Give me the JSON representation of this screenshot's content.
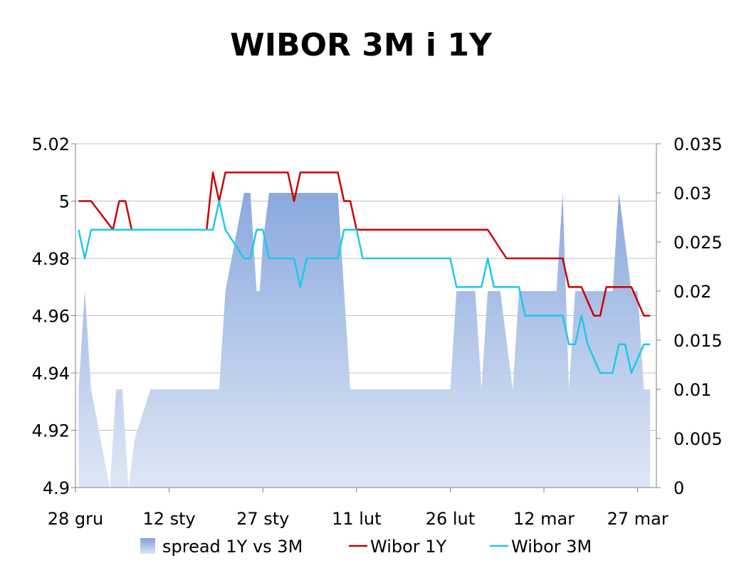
{
  "chart_data": {
    "type": "line",
    "title": "WIBOR 3M i 1Y",
    "x_tick_labels": [
      "28 gru",
      "12 sty",
      "27 sty",
      "11 lut",
      "26 lut",
      "12 mar",
      "27 mar"
    ],
    "x_range_days": [
      0,
      93
    ],
    "left_axis": {
      "min": 4.9,
      "max": 5.02,
      "ticks": [
        "4.9",
        "4.92",
        "4.94",
        "4.96",
        "4.98",
        "5",
        "5.02"
      ]
    },
    "right_axis": {
      "min": 0,
      "max": 0.035,
      "ticks": [
        "0",
        "0.005",
        "0.01",
        "0.015",
        "0.02",
        "0.025",
        "0.03",
        "0.035"
      ]
    },
    "grid": true,
    "legend_position": "bottom",
    "legend": [
      "spread 1Y vs 3M",
      "Wibor 1Y",
      "Wibor 3M"
    ],
    "colors": {
      "spread": "#8eaadc",
      "wibor1y": "#cc0000",
      "wibor3m": "#1ec8ea",
      "grid": "#c0c0c0"
    },
    "series": [
      {
        "name": "spread 1Y vs 3M",
        "type": "area",
        "axis": "right",
        "x": [
          0.5,
          1.5,
          2.5,
          5.5,
          6.5,
          7.5,
          8.5,
          9.5,
          12,
          23,
          24,
          27,
          28,
          29,
          29.5,
          30,
          31,
          34,
          35,
          36,
          37,
          38,
          39,
          40,
          41,
          42,
          43,
          44,
          45,
          46,
          47,
          48,
          49,
          60,
          61,
          62,
          63,
          64,
          65,
          66,
          67,
          68,
          69,
          70,
          71,
          72,
          73,
          77,
          78,
          79,
          80,
          81,
          82,
          83,
          86,
          87,
          88,
          89,
          90,
          91,
          92
        ],
        "values": [
          0.01,
          0.02,
          0.01,
          0,
          0.01,
          0.01,
          0,
          0.005,
          0.01,
          0.01,
          0.02,
          0.03,
          0.03,
          0.02,
          0.02,
          0.025,
          0.03,
          0.03,
          0.03,
          0.03,
          0.03,
          0.03,
          0.03,
          0.03,
          0.03,
          0.03,
          0.02,
          0.01,
          0.01,
          0.01,
          0.01,
          0.01,
          0.01,
          0.01,
          0.02,
          0.02,
          0.02,
          0.02,
          0.01,
          0.02,
          0.02,
          0.02,
          0.015,
          0.01,
          0.02,
          0.02,
          0.02,
          0.02,
          0.03,
          0.01,
          0.02,
          0.02,
          0.02,
          0.02,
          0.02,
          0.03,
          0.025,
          0.02,
          0.02,
          0.01,
          0.01
        ]
      },
      {
        "name": "Wibor 1Y",
        "type": "line",
        "axis": "left",
        "x": [
          0.5,
          2.5,
          6,
          7,
          8,
          9,
          12,
          21,
          22,
          23,
          24,
          25,
          34,
          35,
          36,
          37,
          42,
          43,
          44,
          45,
          46,
          47,
          66,
          69,
          78,
          79,
          80,
          81,
          83,
          84,
          85,
          87,
          89,
          91,
          92
        ],
        "values": [
          5,
          5,
          4.99,
          5,
          5,
          4.99,
          4.99,
          4.99,
          5.01,
          5,
          5.01,
          5.01,
          5.01,
          5,
          5.01,
          5.01,
          5.01,
          5,
          5,
          4.99,
          4.99,
          4.99,
          4.99,
          4.98,
          4.98,
          4.97,
          4.97,
          4.97,
          4.96,
          4.96,
          4.97,
          4.97,
          4.97,
          4.96,
          4.96
        ]
      },
      {
        "name": "Wibor 3M",
        "type": "line",
        "axis": "left",
        "x": [
          0.5,
          1.5,
          2.5,
          6,
          9,
          12,
          21,
          22,
          23,
          24,
          27,
          28,
          29,
          30,
          31,
          34,
          35,
          36,
          37,
          38,
          42,
          43,
          44,
          45,
          46,
          47,
          60,
          61,
          62,
          63,
          64,
          65,
          66,
          67,
          68,
          69,
          70,
          71,
          72,
          73,
          74,
          75,
          76,
          77,
          78,
          79,
          80,
          81,
          82,
          83,
          84,
          85,
          86,
          87,
          88,
          89,
          90,
          91,
          92
        ],
        "values": [
          4.99,
          4.98,
          4.99,
          4.99,
          4.99,
          4.99,
          4.99,
          4.99,
          5,
          4.99,
          4.98,
          4.98,
          4.99,
          4.99,
          4.98,
          4.98,
          4.98,
          4.97,
          4.98,
          4.98,
          4.98,
          4.99,
          4.99,
          4.99,
          4.98,
          4.98,
          4.98,
          4.97,
          4.97,
          4.97,
          4.97,
          4.97,
          4.98,
          4.97,
          4.97,
          4.97,
          4.97,
          4.97,
          4.96,
          4.96,
          4.96,
          4.96,
          4.96,
          4.96,
          4.96,
          4.95,
          4.95,
          4.96,
          4.95,
          4.945,
          4.94,
          4.94,
          4.94,
          4.95,
          4.95,
          4.94,
          4.945,
          4.95,
          4.95
        ]
      }
    ]
  }
}
